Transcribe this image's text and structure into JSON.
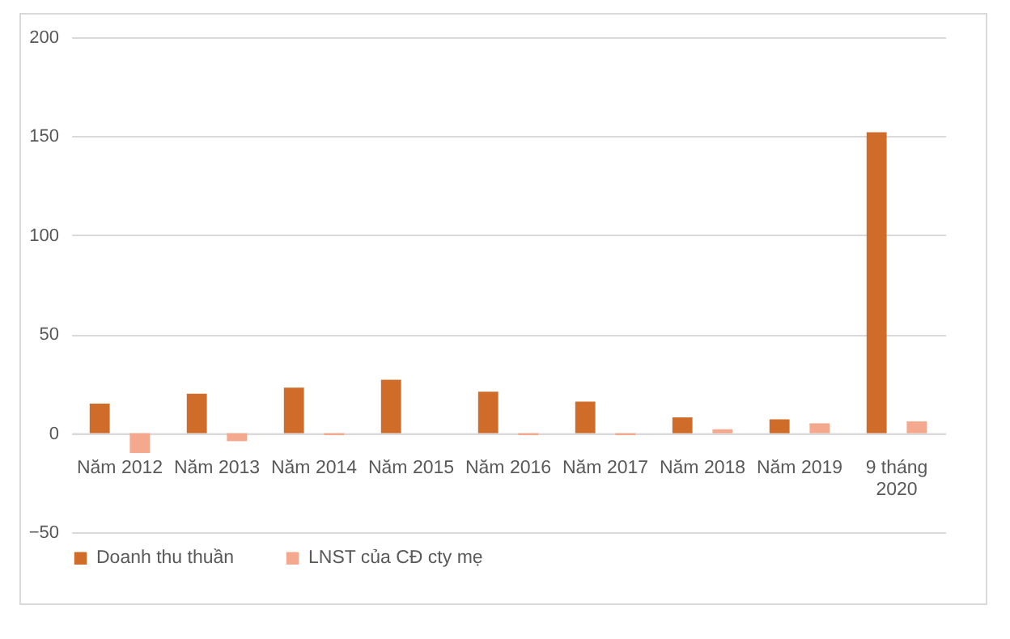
{
  "chart_data": {
    "type": "bar",
    "categories": [
      "Năm 2012",
      "Năm 2013",
      "Năm 2014",
      "Năm 2015",
      "Năm 2016",
      "Năm 2017",
      "Năm 2018",
      "Năm 2019",
      "9 tháng 2020"
    ],
    "series": [
      {
        "name": "Doanh thu thuần",
        "color": "#d06c2a",
        "values": [
          15,
          20,
          23,
          27,
          21,
          16,
          8,
          7,
          152
        ]
      },
      {
        "name": "LNST của CĐ cty  mẹ",
        "color": "#f4a98e",
        "values": [
          -10,
          -4,
          -1,
          0,
          -1,
          -1,
          2,
          5,
          6
        ]
      }
    ],
    "ylim": [
      -50,
      200
    ],
    "yticks": [
      -50,
      0,
      50,
      100,
      150,
      200
    ],
    "grid": "y",
    "legend": "bottom"
  }
}
